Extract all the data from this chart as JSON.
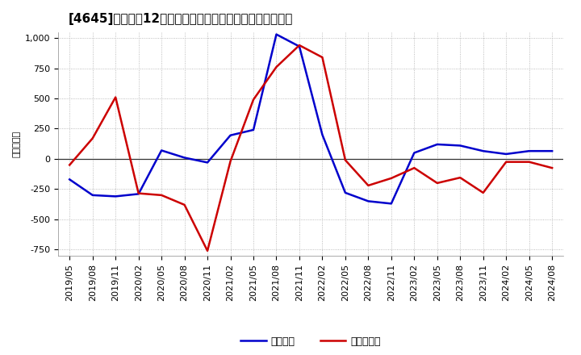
{
  "title": "[4645]　利益だ12か月移動合計の対前年同期増減額の推移",
  "ylabel": "（百万円）",
  "background_color": "#ffffff",
  "plot_bg_color": "#ffffff",
  "grid_color": "#aaaaaa",
  "blue_line": {
    "label": "経常利益",
    "color": "#0000cc",
    "x": [
      "2019/05",
      "2019/08",
      "2019/11",
      "2020/02",
      "2020/05",
      "2020/08",
      "2020/11",
      "2021/02",
      "2021/05",
      "2021/08",
      "2021/11",
      "2022/02",
      "2022/05",
      "2022/08",
      "2022/11",
      "2023/02",
      "2023/05",
      "2023/08",
      "2023/11",
      "2024/02",
      "2024/05",
      "2024/08"
    ],
    "y": [
      -170,
      -300,
      -310,
      -290,
      70,
      10,
      -30,
      195,
      240,
      1030,
      930,
      200,
      -280,
      -350,
      -370,
      50,
      120,
      110,
      65,
      40,
      65,
      65
    ]
  },
  "red_line": {
    "label": "当期純利益",
    "color": "#cc0000",
    "x": [
      "2019/05",
      "2019/08",
      "2019/11",
      "2020/02",
      "2020/05",
      "2020/08",
      "2020/11",
      "2021/02",
      "2021/05",
      "2021/08",
      "2021/11",
      "2022/02",
      "2022/05",
      "2022/08",
      "2022/11",
      "2023/02",
      "2023/05",
      "2023/08",
      "2023/11",
      "2024/02",
      "2024/05",
      "2024/08"
    ],
    "y": [
      -50,
      170,
      510,
      -285,
      -300,
      -380,
      -760,
      -20,
      490,
      760,
      940,
      840,
      -10,
      -220,
      -160,
      -75,
      -200,
      -155,
      -280,
      -25,
      -25,
      -75
    ]
  },
  "ylim": [
    -800,
    1050
  ],
  "yticks": [
    -750,
    -500,
    -250,
    0,
    250,
    500,
    750,
    1000
  ],
  "zero_line_color": "#333333",
  "title_fontsize": 11,
  "tick_fontsize": 8,
  "ylabel_fontsize": 8
}
